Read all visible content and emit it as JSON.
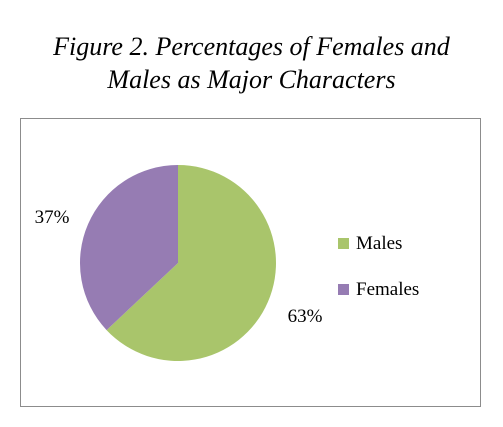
{
  "figure": {
    "title_line1": "Figure 2.  Percentages of Females and",
    "title_line2": "Males as Major Characters"
  },
  "chart_data": {
    "type": "pie",
    "title": "Figure 2.  Percentages of Females and Males as Major Characters",
    "slices": [
      {
        "name": "Males",
        "value": 63,
        "label": "63%",
        "color": "#a9c56b"
      },
      {
        "name": "Females",
        "value": 37,
        "label": "37%",
        "color": "#967cb3"
      }
    ],
    "start": "12 o'clock, clockwise",
    "legend_position": "right",
    "legend": [
      "Males",
      "Females"
    ]
  }
}
